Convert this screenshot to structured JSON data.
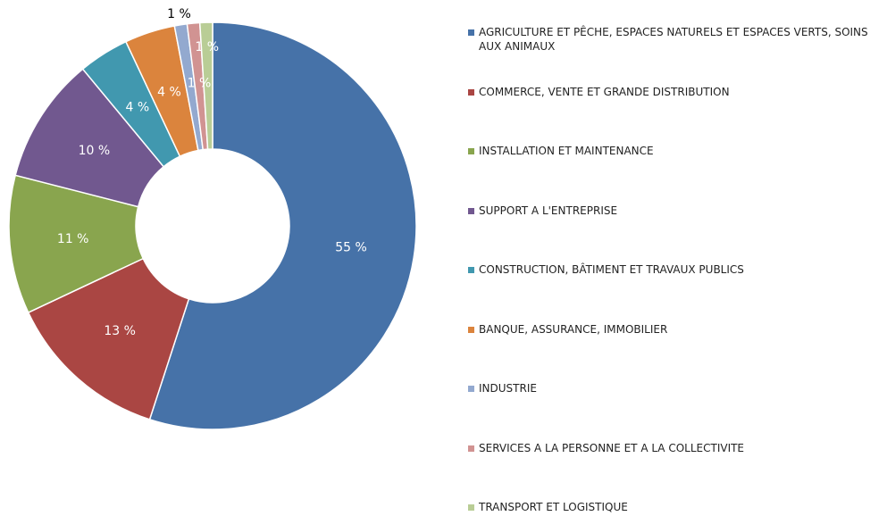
{
  "chart_data": {
    "type": "donut",
    "categories": [
      "AGRICULTURE ET PÊCHE, ESPACES NATURELS ET ESPACES VERTS, SOINS AUX ANIMAUX",
      "COMMERCE, VENTE ET GRANDE DISTRIBUTION",
      "INSTALLATION ET MAINTENANCE",
      "SUPPORT A L'ENTREPRISE",
      "CONSTRUCTION, BÂTIMENT ET TRAVAUX PUBLICS",
      "BANQUE, ASSURANCE, IMMOBILIER",
      "INDUSTRIE",
      "SERVICES A LA PERSONNE ET A LA COLLECTIVITE",
      "TRANSPORT ET LOGISTIQUE"
    ],
    "values": [
      55,
      13,
      11,
      10,
      4,
      4,
      1,
      1,
      1
    ],
    "value_labels": [
      "55 %",
      "13 %",
      "11 %",
      "10 %",
      "4 %",
      "4 %",
      "1 %",
      "1 %",
      "1 %"
    ],
    "colors": [
      "#4672a8",
      "#aa4643",
      "#89a54e",
      "#71588f",
      "#4198af",
      "#db843d",
      "#93a9cf",
      "#d19392",
      "#b9cd96"
    ],
    "legend": "right"
  }
}
